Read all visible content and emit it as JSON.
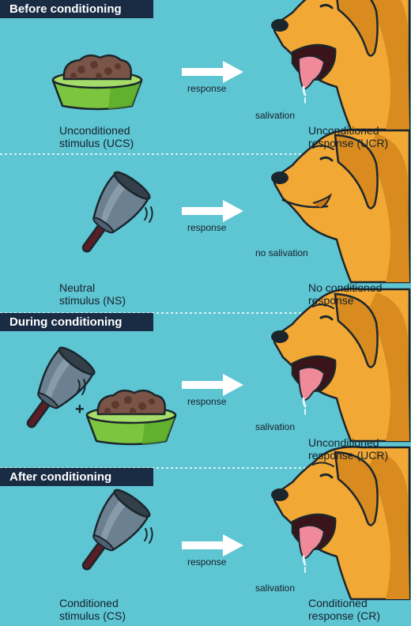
{
  "sections": [
    {
      "banner": "Before conditioning",
      "arrow_label": "response",
      "dog_label": "salivation",
      "stimulus": [
        "Unconditioned",
        "stimulus (UCS)"
      ],
      "result": [
        "Unconditioned",
        "response (UCR)"
      ]
    },
    {
      "banner": "",
      "arrow_label": "response",
      "dog_label": "no salivation",
      "stimulus": [
        "Neutral",
        "stimulus (NS)"
      ],
      "result": [
        "No conditioned",
        "response"
      ]
    },
    {
      "banner": "During conditioning",
      "arrow_label": "response",
      "dog_label": "salivation",
      "plus": "+",
      "stimulus": [],
      "result": [
        "Unconditioned",
        "response (UCR)"
      ]
    },
    {
      "banner": "After conditioning",
      "arrow_label": "response",
      "dog_label": "salivation",
      "stimulus": [
        "Conditioned",
        "stimulus (CS)"
      ],
      "result": [
        "Conditioned",
        "response (CR)"
      ]
    }
  ],
  "colors": {
    "background": "#5ec5d3",
    "banner": "#1a2c44",
    "dog": "#f2a834",
    "bowl": "#7cc53f",
    "food": "#7a5446",
    "bell": "#6b8090",
    "handle": "#5a1e26",
    "tongue": "#f08a9a"
  }
}
